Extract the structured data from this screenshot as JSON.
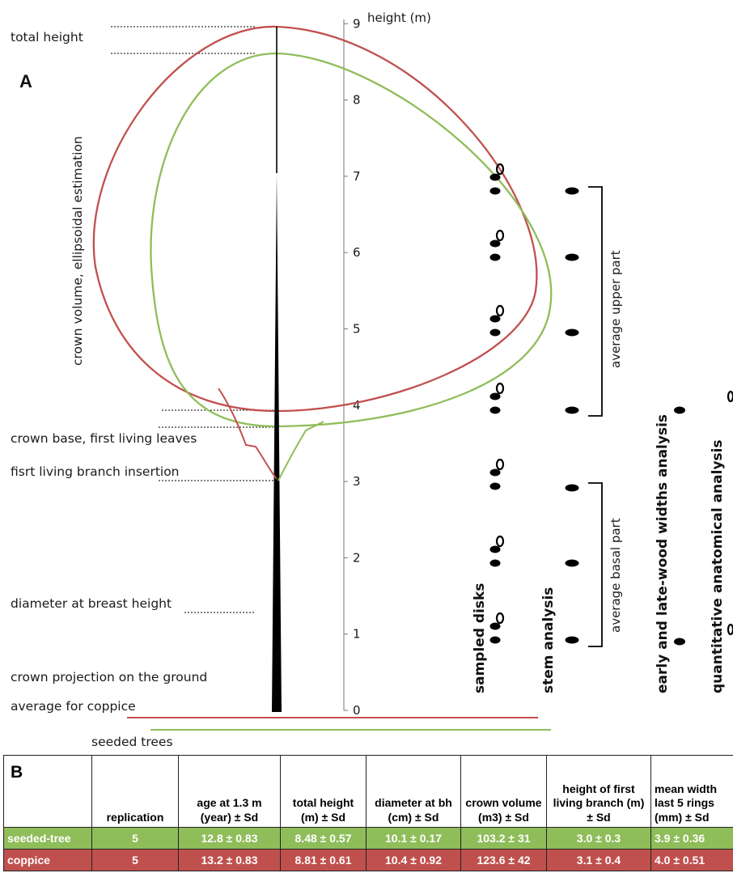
{
  "panel_a": {
    "letter": "A",
    "axis_title": "height (m)",
    "ticks": [
      "9",
      "8",
      "7",
      "6",
      "5",
      "4",
      "3",
      "2",
      "1",
      "0"
    ],
    "annotations": {
      "total_height": "total height",
      "crown_volume": "crown volume, ellipsoidal estimation",
      "crown_base": "crown base, first living leaves",
      "first_branch": "fisrt living branch insertion",
      "dbh": "diameter at breast height",
      "crown_projection": "crown projection on the ground",
      "average_coppice": "average for coppice",
      "seeded_trees": "seeded trees"
    },
    "columns": {
      "sampled_disks": "sampled disks",
      "stem_analysis": "stem analysis",
      "early_late_wood": "early and late-wood widths analysis",
      "anatomical": "quantitative anatomical analysis"
    },
    "brackets": {
      "upper": "average upper part",
      "basal": "average basal part"
    },
    "colors": {
      "seeded": "#8fbd5a",
      "coppice": "#c0504d"
    }
  },
  "panel_b": {
    "letter": "B",
    "headers": [
      "",
      "replication",
      "age at 1.3 m (year) ± Sd",
      "total height (m) ± Sd",
      "diameter at bh (cm) ± Sd",
      "crown volume (m3) ± Sd",
      "height of first living branch (m) ± Sd",
      "mean width last 5 rings (mm) ± Sd"
    ],
    "rows": [
      {
        "name": "seeded-tree",
        "cells": [
          "5",
          "12.8 ± 0.83",
          "8.48 ± 0.57",
          "10.1 ± 0.17",
          "103.2 ± 31",
          "3.0 ± 0.3",
          "3.9 ± 0.36"
        ]
      },
      {
        "name": "coppice",
        "cells": [
          "5",
          "13.2 ± 0.83",
          "8.81 ± 0.61",
          "10.4 ± 0.92",
          "123.6 ± 42",
          "3.1 ± 0.4",
          "4.0 ± 0.51"
        ]
      }
    ]
  }
}
